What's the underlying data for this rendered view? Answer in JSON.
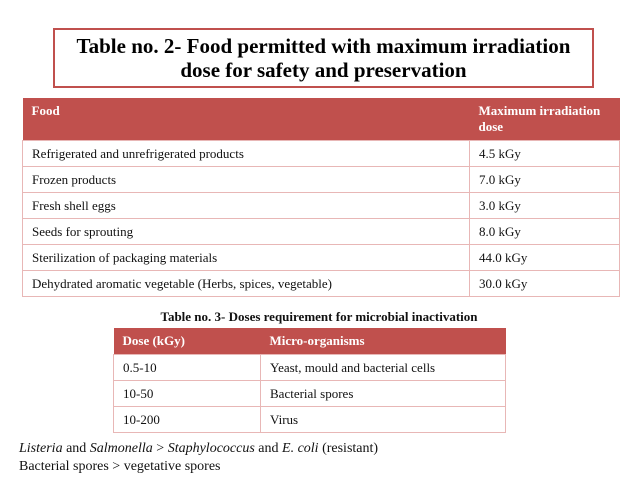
{
  "title": {
    "line1": "Table no. 2- Food permitted with maximum irradiation",
    "line2": "dose for safety and preservation"
  },
  "table2": {
    "headers": [
      "Food",
      "Maximum irradiation dose"
    ],
    "rows": [
      [
        "Refrigerated and unrefrigerated products",
        "4.5 kGy"
      ],
      [
        "Frozen products",
        "7.0 kGy"
      ],
      [
        "Fresh shell eggs",
        "3.0 kGy"
      ],
      [
        "Seeds for sprouting",
        "8.0 kGy"
      ],
      [
        "Sterilization of packaging materials",
        "44.0 kGy"
      ],
      [
        "Dehydrated aromatic vegetable (Herbs, spices, vegetable)",
        "30.0 kGy"
      ]
    ]
  },
  "table3": {
    "caption": "Table no. 3- Doses requirement for  microbial inactivation",
    "headers": [
      "Dose (kGy)",
      "Micro-organisms"
    ],
    "rows": [
      [
        "0.5-10",
        "Yeast, mould and bacterial cells"
      ],
      [
        "10-50",
        "Bacterial spores"
      ],
      [
        "10-200",
        "Virus"
      ]
    ]
  },
  "notes": {
    "line1": {
      "part1": "Listeria",
      "part2": " and ",
      "part3": "Salmonella",
      "part4": "  > ",
      "part5": "Staphylococcus",
      "part6": " and ",
      "part7": "E. coli",
      "part8": " (resistant)"
    },
    "line2": "Bacterial spores > vegetative spores"
  },
  "colors": {
    "header_fill": "#c0504d",
    "title_border": "#c0504d"
  }
}
